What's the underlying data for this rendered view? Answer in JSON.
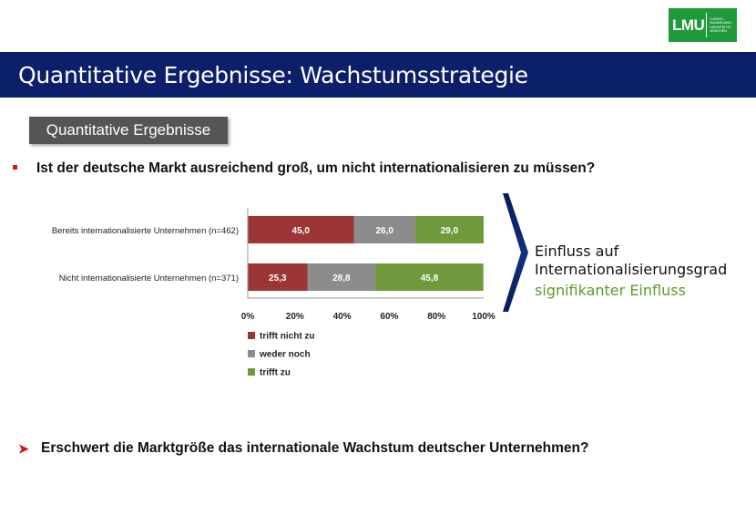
{
  "logo": {
    "mark": "LMU",
    "lines": [
      "LUDWIG-",
      "MAXIMILIANS-",
      "UNIVERSITÄT",
      "MÜNCHEN"
    ]
  },
  "header": {
    "title": "Quantitative Ergebnisse: Wachstumsstrategie"
  },
  "section_tag": "Quantitative Ergebnisse",
  "question1": "Ist der deutsche Markt ausreichend groß, um nicht internationalisieren zu müssen?",
  "result": {
    "line1": "Einfluss auf",
    "line2": "Internationalisierungsgrad",
    "significance": "signifikanter Einfluss"
  },
  "question2": "Erschwert die Marktgröße das internationale Wachstum deutscher Unternehmen?",
  "colors": {
    "header_bg": "#0c1f6b",
    "trifft_nicht_zu": "#9b3536",
    "weder_noch": "#8c8c8c",
    "trifft_zu": "#6f9a3c",
    "significance": "#5a9a2e",
    "bullet": "#d9141b"
  },
  "chart_data": {
    "type": "bar",
    "orientation": "horizontal",
    "stacked": true,
    "categories": [
      "Bereits internationalisierte Unternehmen (n=462)",
      "Nicht internationalisierte Unternehmen (n=371)"
    ],
    "series": [
      {
        "name": "trifft nicht zu",
        "values": [
          45.0,
          25.3
        ],
        "labels": [
          "45,0",
          "25,3"
        ],
        "color": "#9b3536"
      },
      {
        "name": "weder noch",
        "values": [
          26.0,
          28.8
        ],
        "labels": [
          "26,0",
          "28,8"
        ],
        "color": "#8c8c8c"
      },
      {
        "name": "trifft zu",
        "values": [
          29.0,
          45.8
        ],
        "labels": [
          "29,0",
          "45,8"
        ],
        "color": "#6f9a3c"
      }
    ],
    "xlim": [
      0,
      100
    ],
    "xticks": [
      "0%",
      "20%",
      "40%",
      "60%",
      "80%",
      "100%"
    ],
    "legend_position": "bottom-left",
    "grid": false
  }
}
